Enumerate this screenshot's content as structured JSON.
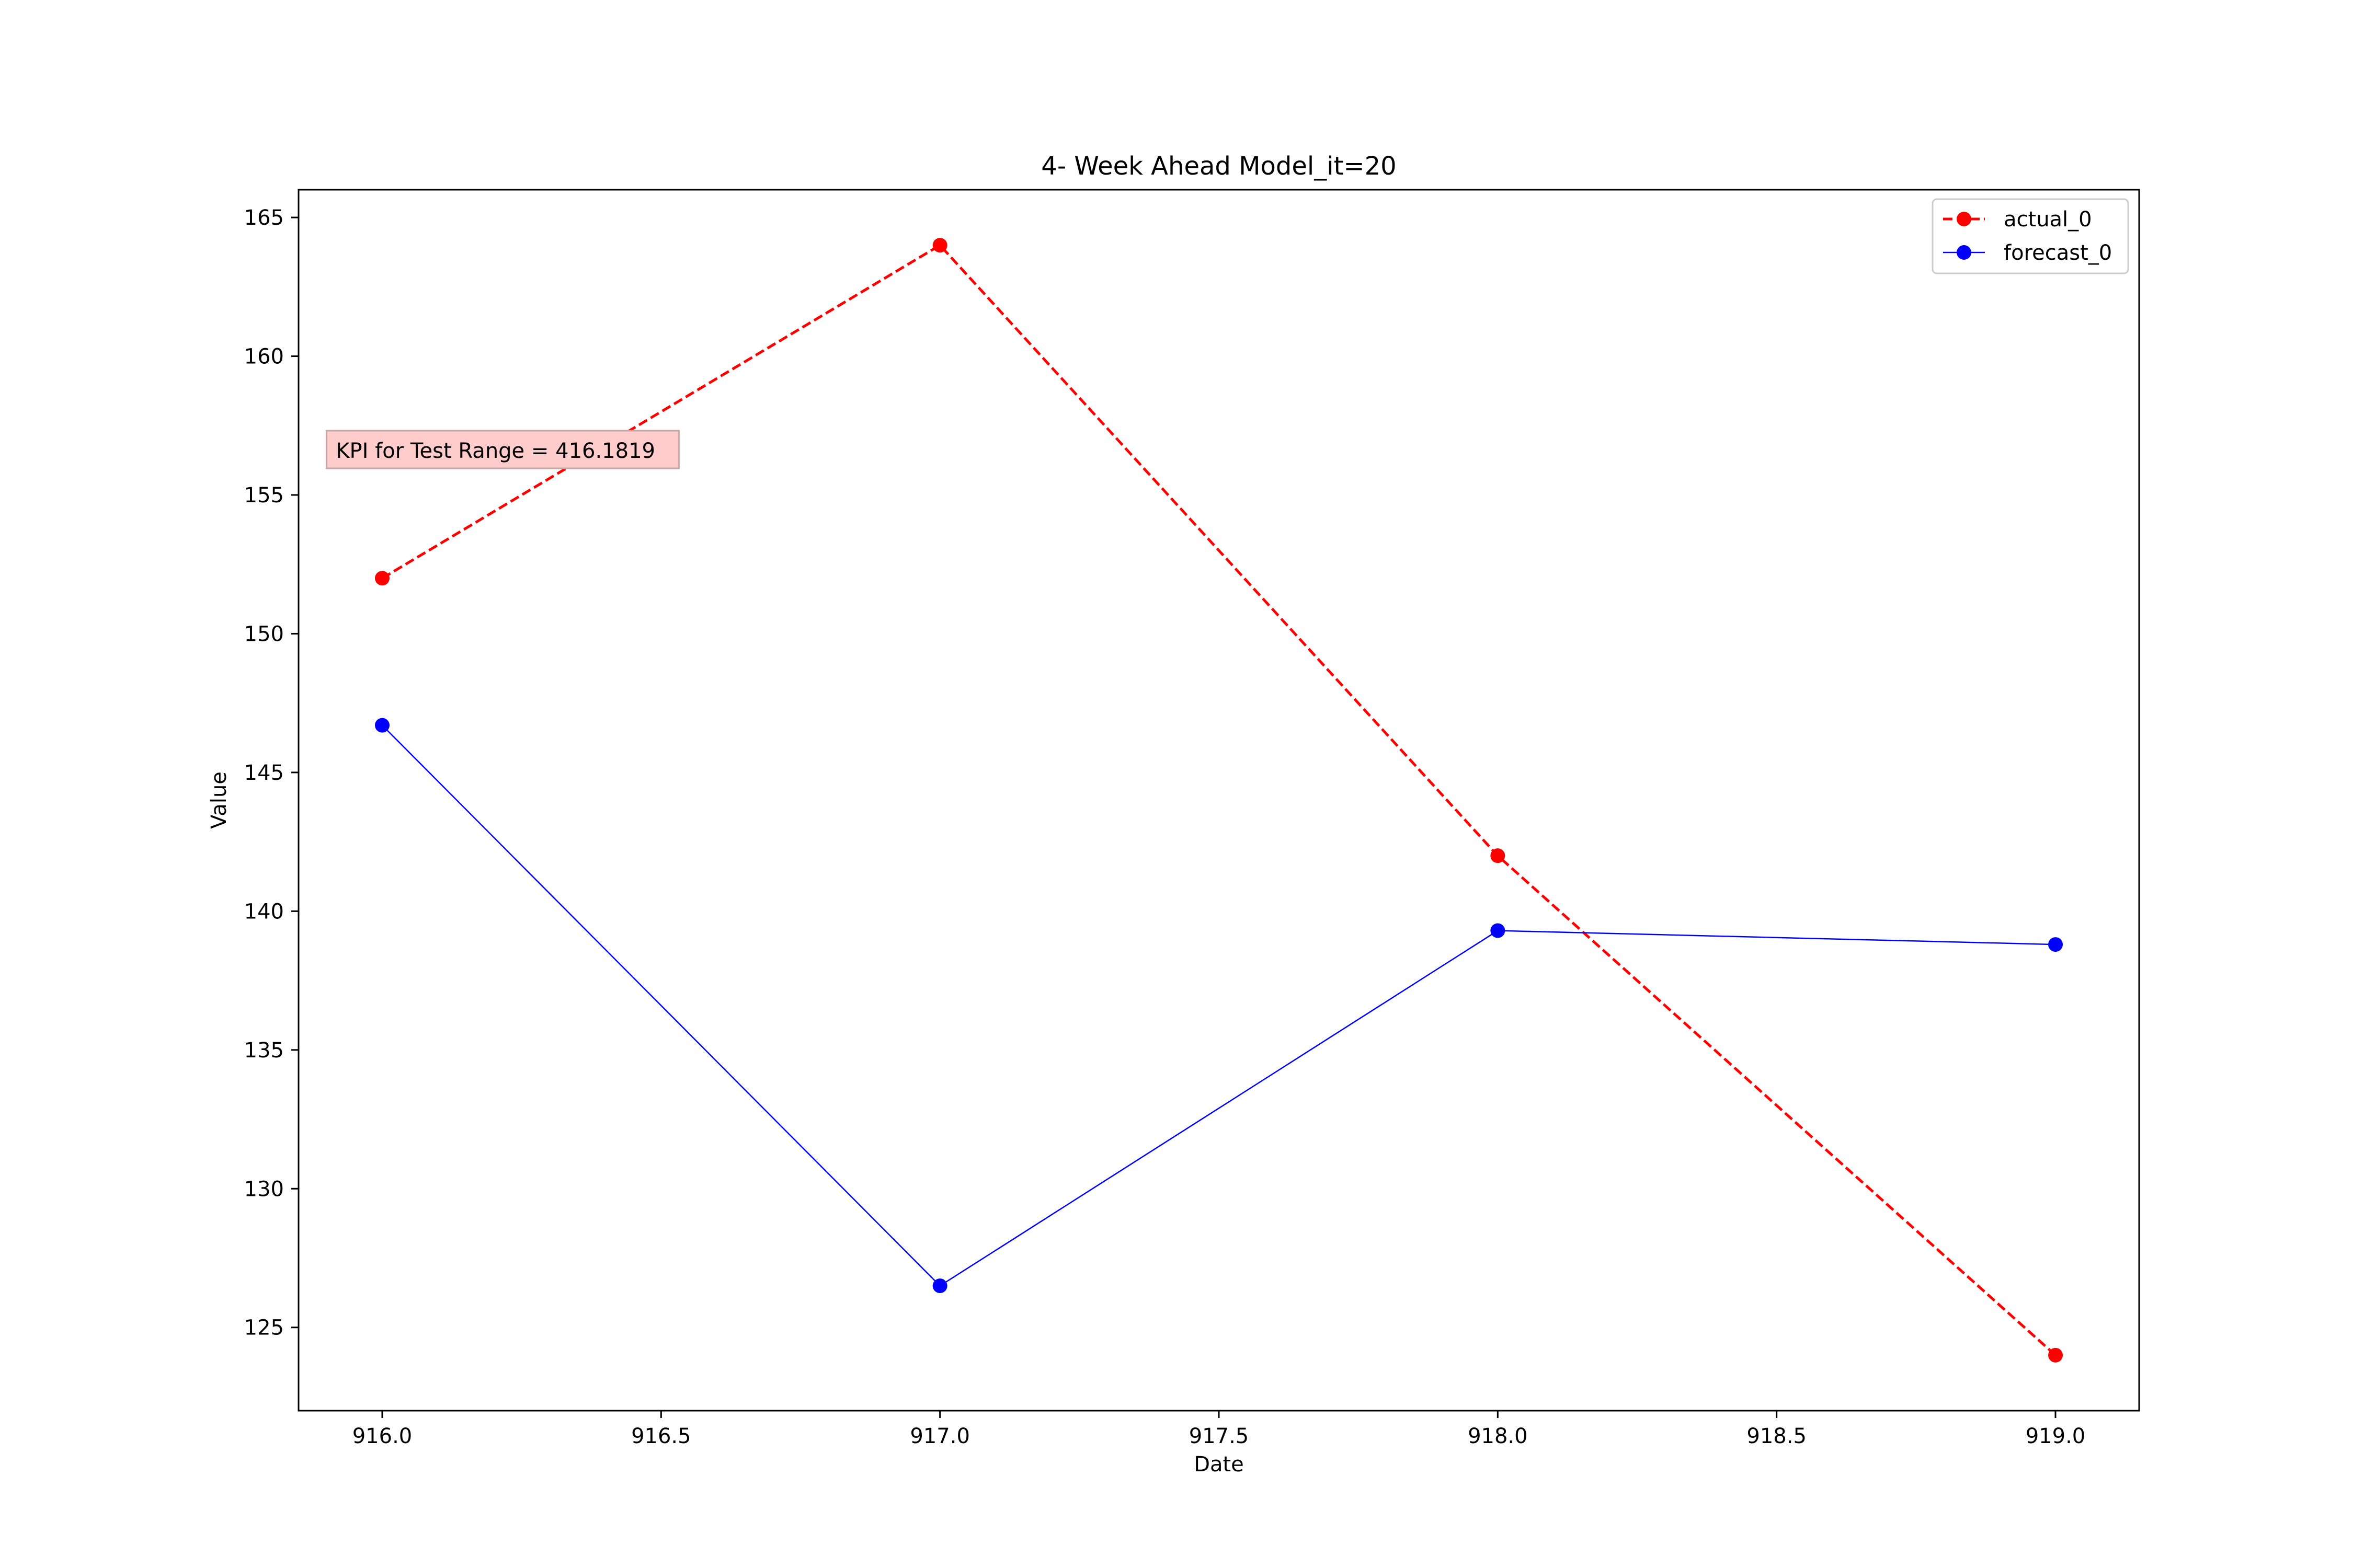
{
  "chart_data": {
    "type": "line",
    "title": "4- Week Ahead Model_it=20",
    "xlabel": "Date",
    "ylabel": "Value",
    "xlim": [
      915.85,
      919.15
    ],
    "ylim": [
      122,
      166
    ],
    "x_ticks": [
      916.0,
      916.5,
      917.0,
      917.5,
      918.0,
      918.5,
      919.0
    ],
    "x_tick_labels": [
      "916.0",
      "916.5",
      "917.0",
      "917.5",
      "918.0",
      "918.5",
      "919.0"
    ],
    "y_ticks": [
      125,
      130,
      135,
      140,
      145,
      150,
      155,
      160,
      165
    ],
    "y_tick_labels": [
      "125",
      "130",
      "135",
      "140",
      "145",
      "150",
      "155",
      "160",
      "165"
    ],
    "grid": false,
    "legend_position": "top-right",
    "series": [
      {
        "name": "actual_0",
        "color": "#ff0000",
        "line_style": "dashed",
        "marker": "circle",
        "x": [
          916.0,
          917.0,
          918.0,
          919.0
        ],
        "y": [
          152.0,
          164.0,
          142.0,
          124.0
        ]
      },
      {
        "name": "forecast_0",
        "color": "#0000ff",
        "line_style": "solid",
        "marker": "circle",
        "x": [
          916.0,
          917.0,
          918.0,
          919.0
        ],
        "y": [
          146.7,
          126.5,
          139.3,
          138.8
        ]
      }
    ],
    "annotation": {
      "text": "KPI for Test Range = 416.1819",
      "background": "#ffcccc",
      "anchor_x": 915.9,
      "anchor_y": 156.6
    }
  }
}
